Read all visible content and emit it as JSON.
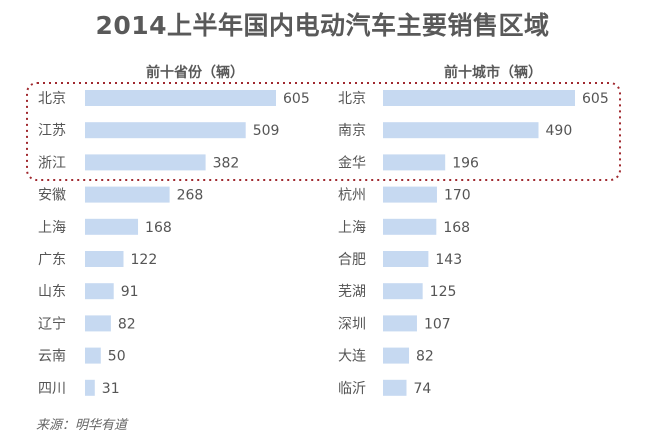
{
  "title": "2014上半年国内电动汽车主要销售区域",
  "source": "来源：明华有道",
  "colors": {
    "bar": "#c6d9f1",
    "highlight_border": "#a0292f"
  },
  "chart_data": [
    {
      "type": "bar",
      "orientation": "horizontal",
      "title": "前十省份（辆）",
      "categories": [
        "北京",
        "江苏",
        "浙江",
        "安徽",
        "上海",
        "广东",
        "山东",
        "辽宁",
        "云南",
        "四川"
      ],
      "values": [
        605,
        509,
        382,
        268,
        168,
        122,
        91,
        82,
        50,
        31
      ],
      "xlim": [
        0,
        605
      ],
      "grid": false,
      "highlighted": [
        "北京",
        "江苏",
        "浙江"
      ]
    },
    {
      "type": "bar",
      "orientation": "horizontal",
      "title": "前十城市（辆）",
      "categories": [
        "北京",
        "南京",
        "金华",
        "杭州",
        "上海",
        "合肥",
        "芜湖",
        "深圳",
        "大连",
        "临沂"
      ],
      "values": [
        605,
        490,
        196,
        170,
        168,
        143,
        125,
        107,
        82,
        74
      ],
      "xlim": [
        0,
        605
      ],
      "grid": false,
      "highlighted": [
        "北京",
        "南京",
        "金华"
      ]
    }
  ]
}
